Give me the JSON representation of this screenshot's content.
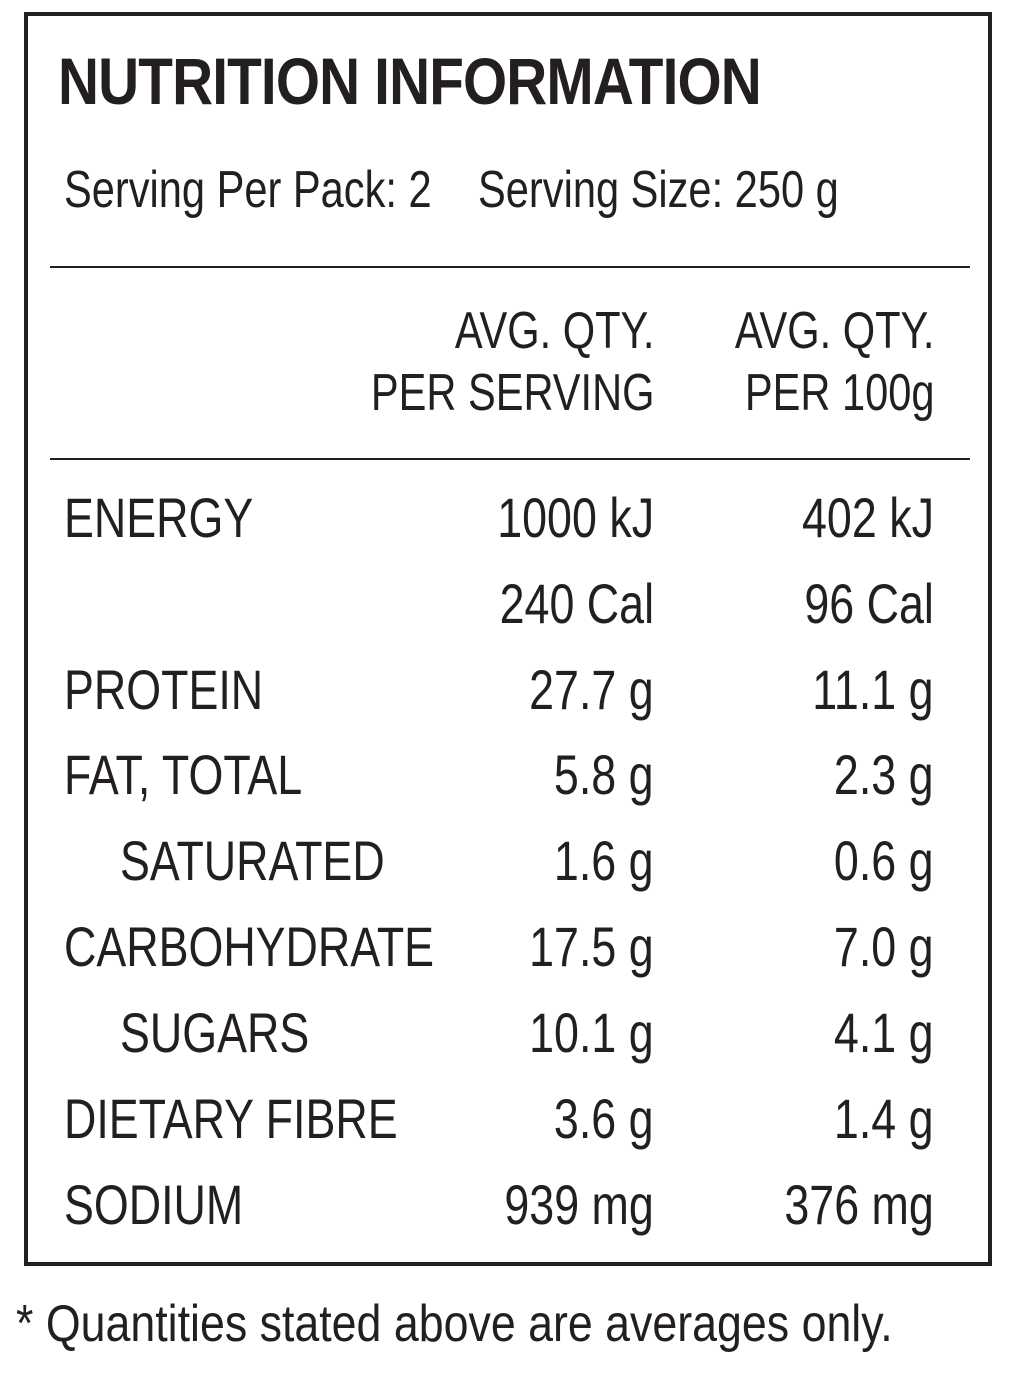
{
  "title": "NUTRITION INFORMATION",
  "serving": {
    "per_pack": "Serving Per Pack: 2",
    "size": "Serving Size: 250 g"
  },
  "columns": {
    "per_serving_line1": "AVG. QTY.",
    "per_serving_line2": "PER SERVING",
    "per_100g_line1": "AVG. QTY.",
    "per_100g_line2": "PER 100g"
  },
  "rows": [
    {
      "name": "ENERGY",
      "per_serving": "1000 kJ",
      "per_100g": "402 kJ"
    },
    {
      "name": "",
      "per_serving": "240 Cal",
      "per_100g": "96 Cal"
    },
    {
      "name": "PROTEIN",
      "per_serving": "27.7 g",
      "per_100g": "11.1 g"
    },
    {
      "name": "FAT, TOTAL",
      "per_serving": "5.8 g",
      "per_100g": "2.3 g"
    },
    {
      "name": "SATURATED",
      "per_serving": "1.6 g",
      "per_100g": "0.6 g"
    },
    {
      "name": "CARBOHYDRATE",
      "per_serving": "17.5 g",
      "per_100g": "7.0 g"
    },
    {
      "name": "SUGARS",
      "per_serving": "10.1 g",
      "per_100g": "4.1 g"
    },
    {
      "name": "DIETARY FIBRE",
      "per_serving": "3.6 g",
      "per_100g": "1.4 g"
    },
    {
      "name": "SODIUM",
      "per_serving": "939 mg",
      "per_100g": "376 mg"
    }
  ],
  "footnote": "* Quantities stated above are averages only."
}
